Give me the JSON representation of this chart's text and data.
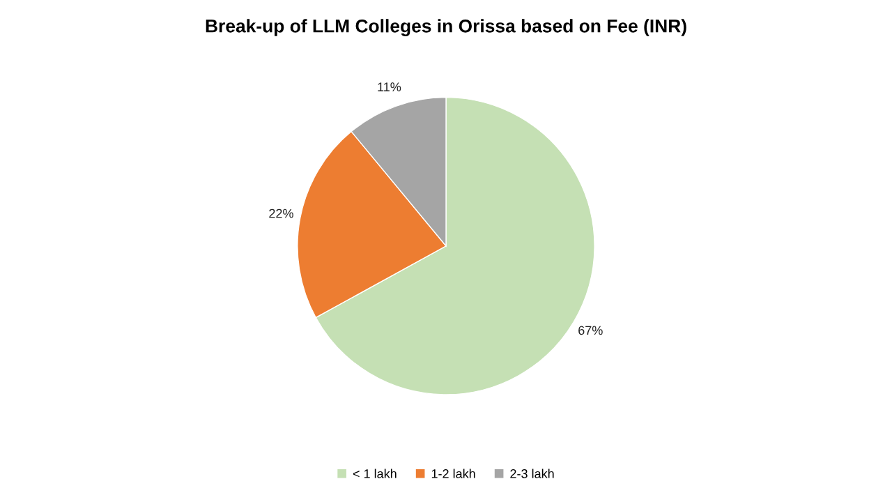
{
  "chart_data": {
    "type": "pie",
    "title": "Break-up of LLM Colleges in Orissa based on Fee (INR)",
    "categories": [
      "< 1 lakh",
      "1-2 lakh",
      "2-3 lakh"
    ],
    "values": [
      67,
      22,
      11
    ],
    "colors": [
      "#c5e0b4",
      "#ed7d31",
      "#a5a5a5"
    ],
    "value_labels": [
      "67%",
      "22%",
      "11%"
    ],
    "legend": "bottom"
  }
}
